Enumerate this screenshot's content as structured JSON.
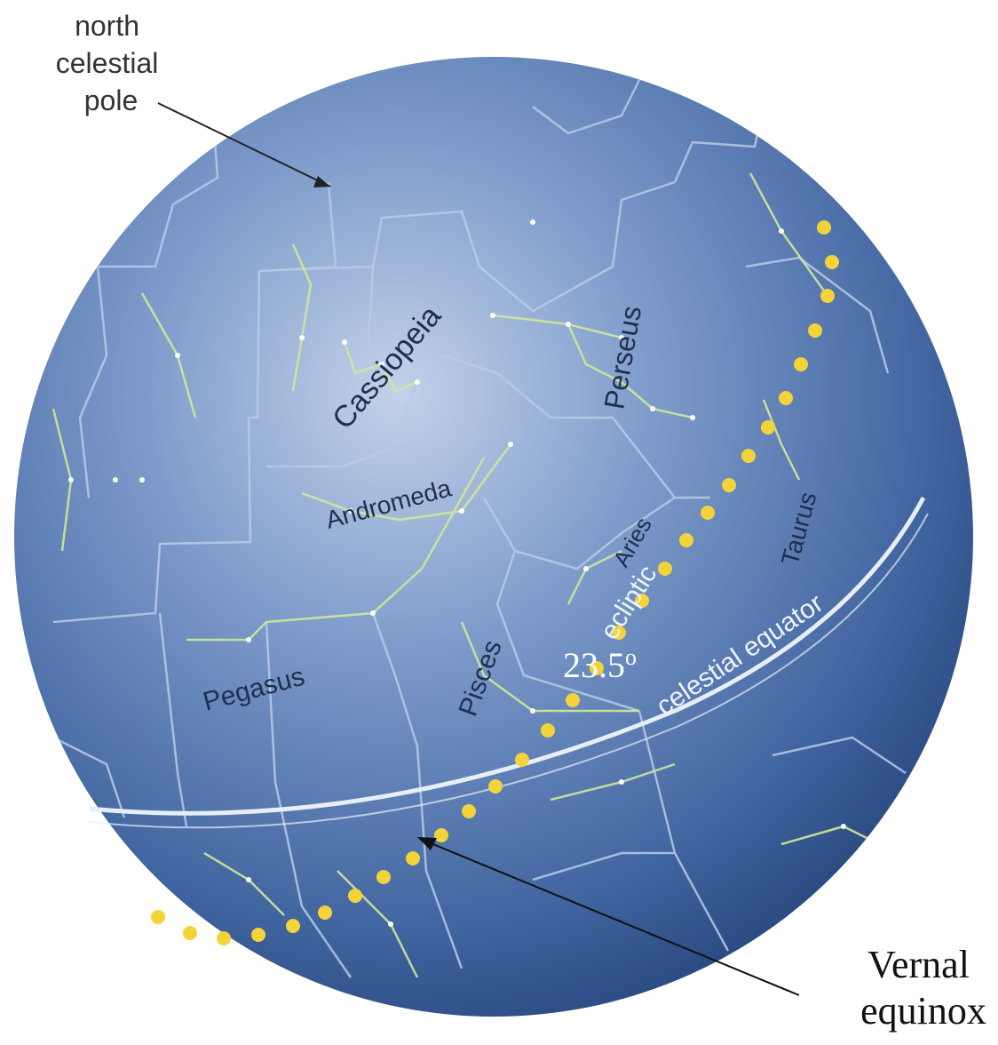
{
  "labels": {
    "north_pole": [
      "north",
      "celestial",
      "pole"
    ],
    "cassiopeia": "Cassiopeia",
    "andromeda": "Andromeda",
    "perseus": "Perseus",
    "aries": "Aries",
    "taurus": "Taurus",
    "pegasus": "Pegasus",
    "pisces": "Pisces",
    "ecliptic": "ecliptic",
    "celestial_equator": "celestial equator",
    "angle": "23.5",
    "angle_unit": "o",
    "vernal": [
      "Vernal",
      "equinox"
    ]
  },
  "colors": {
    "sphere_light": "#9fb6da",
    "sphere_mid": "#4f73ad",
    "sphere_dark": "#1f3d72",
    "constellation_lines": "#cfe89a",
    "boundary_lines": "#b8cbe6",
    "ecliptic_dots": "#f4d23a",
    "label_dark": "#1f2f4d",
    "label_light": "#eef3fb"
  }
}
